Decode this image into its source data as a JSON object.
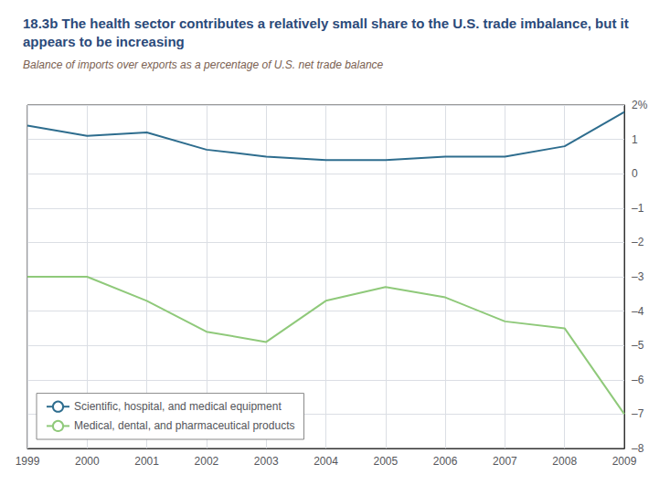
{
  "chart_data": {
    "type": "line",
    "title": "18.3b The health sector contributes a relatively small share to the U.S. trade imbalance, but it appears to be increasing",
    "subtitle": "Balance of imports over exports as a percentage of U.S. net trade balance",
    "x": [
      1999,
      2000,
      2001,
      2002,
      2003,
      2004,
      2005,
      2006,
      2007,
      2008,
      2009
    ],
    "xlim": [
      1999,
      2009
    ],
    "xticks": [
      1999,
      2000,
      2001,
      2002,
      2003,
      2004,
      2005,
      2006,
      2007,
      2008,
      2009
    ],
    "ylim": [
      -8,
      2
    ],
    "yticks": [
      {
        "value": -8,
        "label": "–8"
      },
      {
        "value": -7,
        "label": "–7"
      },
      {
        "value": -6,
        "label": "–6"
      },
      {
        "value": -5,
        "label": "–5"
      },
      {
        "value": -4,
        "label": "–4"
      },
      {
        "value": -3,
        "label": "–3"
      },
      {
        "value": -2,
        "label": "–2"
      },
      {
        "value": -1,
        "label": "–1"
      },
      0,
      1,
      {
        "value": 2,
        "label": "2%"
      }
    ],
    "grid": true,
    "legend": "lower left",
    "series": [
      {
        "name": "Scientific, hospital, and medical equipment",
        "color": "#2e6d8e",
        "values": [
          1.4,
          1.1,
          1.2,
          0.7,
          0.5,
          0.4,
          0.4,
          0.5,
          0.5,
          0.8,
          1.8
        ]
      },
      {
        "name": "Medical, dental, and pharmaceutical products",
        "color": "#8fc97a",
        "values": [
          -3.0,
          -3.0,
          -3.7,
          -4.6,
          -4.9,
          -3.7,
          -3.3,
          -3.6,
          -4.3,
          -4.5,
          -7.0
        ]
      }
    ]
  }
}
